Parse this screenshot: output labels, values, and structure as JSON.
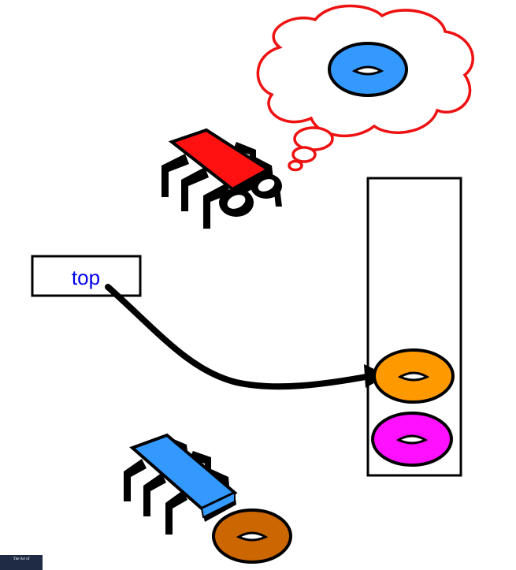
{
  "labels": {
    "top_box_text": "top",
    "corner_logo_text": "The Art of"
  },
  "colors": {
    "thought_cloud_outline": "#ee1111",
    "thought_donut": "#3399ff",
    "top_bug_body": "#ff1111",
    "bottom_bug_body": "#3399ff",
    "stack_top_donut": "#ff9900",
    "stack_bottom_donut": "#ff11ff",
    "carried_donut": "#cc6600",
    "label_text": "#0000ee"
  },
  "icons": {
    "thinking_bug": "red-bug-icon",
    "carrying_bug": "blue-bug-icon",
    "thought": "thought-cloud-icon",
    "pointer": "top-pointer-arrow",
    "stack": "stack-container"
  }
}
